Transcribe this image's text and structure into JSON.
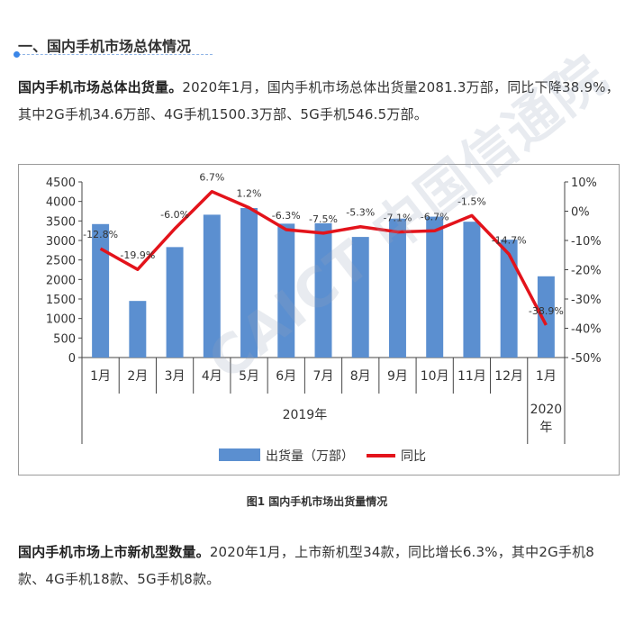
{
  "section": {
    "title": "一、国内手机市场总体情况"
  },
  "paragraph1": {
    "lead": "国内手机市场总体出货量。",
    "text": "2020年1月，国内手机市场总体出货量2081.3万部，同比下降38.9%，其中2G手机34.6万部、4G手机1500.3万部、5G手机546.5万部。"
  },
  "figure": {
    "caption": "图1   国内手机市场出货量情况",
    "watermark": "CAICT 中国信通院"
  },
  "paragraph2": {
    "lead": "国内手机市场上市新机型数量。",
    "text": "2020年1月，上市新机型34款，同比增长6.3%，其中2G手机8款、4G手机18款、5G手机8款。"
  },
  "colors": {
    "bar": "#5b8fd0",
    "line": "#e3131b",
    "grid_border": "#9a9a9a"
  },
  "chart_data": {
    "type": "bar",
    "categories": [
      "1月",
      "2月",
      "3月",
      "4月",
      "5月",
      "6月",
      "7月",
      "8月",
      "9月",
      "10月",
      "11月",
      "12月",
      "1月"
    ],
    "groups": [
      {
        "label": "2019年",
        "from": 0,
        "to": 11
      },
      {
        "label": "2020年",
        "from": 12,
        "to": 12
      }
    ],
    "series": [
      {
        "name": "出货量（万部）",
        "type": "bar",
        "axis": "left",
        "values": [
          3420,
          1450,
          2830,
          3660,
          3830,
          3430,
          3440,
          3090,
          3560,
          3610,
          3480,
          3020,
          2081.3
        ]
      },
      {
        "name": "同比",
        "type": "line",
        "axis": "right",
        "values": [
          -12.8,
          -19.9,
          -6.0,
          6.7,
          1.2,
          -6.3,
          -7.5,
          -5.3,
          -7.1,
          -6.7,
          -1.5,
          -14.7,
          -38.9
        ],
        "labels": [
          "-12.8%",
          "-19.9%",
          "-6.0%",
          "6.7%",
          "1.2%",
          "-6.3%",
          "-7.5%",
          "-5.3%",
          "-7.1%",
          "-6.7%",
          "-1.5%",
          "-14.7%",
          "-38.9%"
        ]
      }
    ],
    "y_left": {
      "min": 0,
      "max": 4500,
      "ticks": [
        "0",
        "500",
        "1000",
        "1500",
        "2000",
        "2500",
        "3000",
        "3500",
        "4000",
        "4500"
      ]
    },
    "y_right": {
      "min": -50,
      "max": 10,
      "ticks": [
        "-50%",
        "-40%",
        "-30%",
        "-20%",
        "-10%",
        "0%",
        "10%"
      ]
    },
    "legend_position": "bottom-center",
    "grid": false
  }
}
